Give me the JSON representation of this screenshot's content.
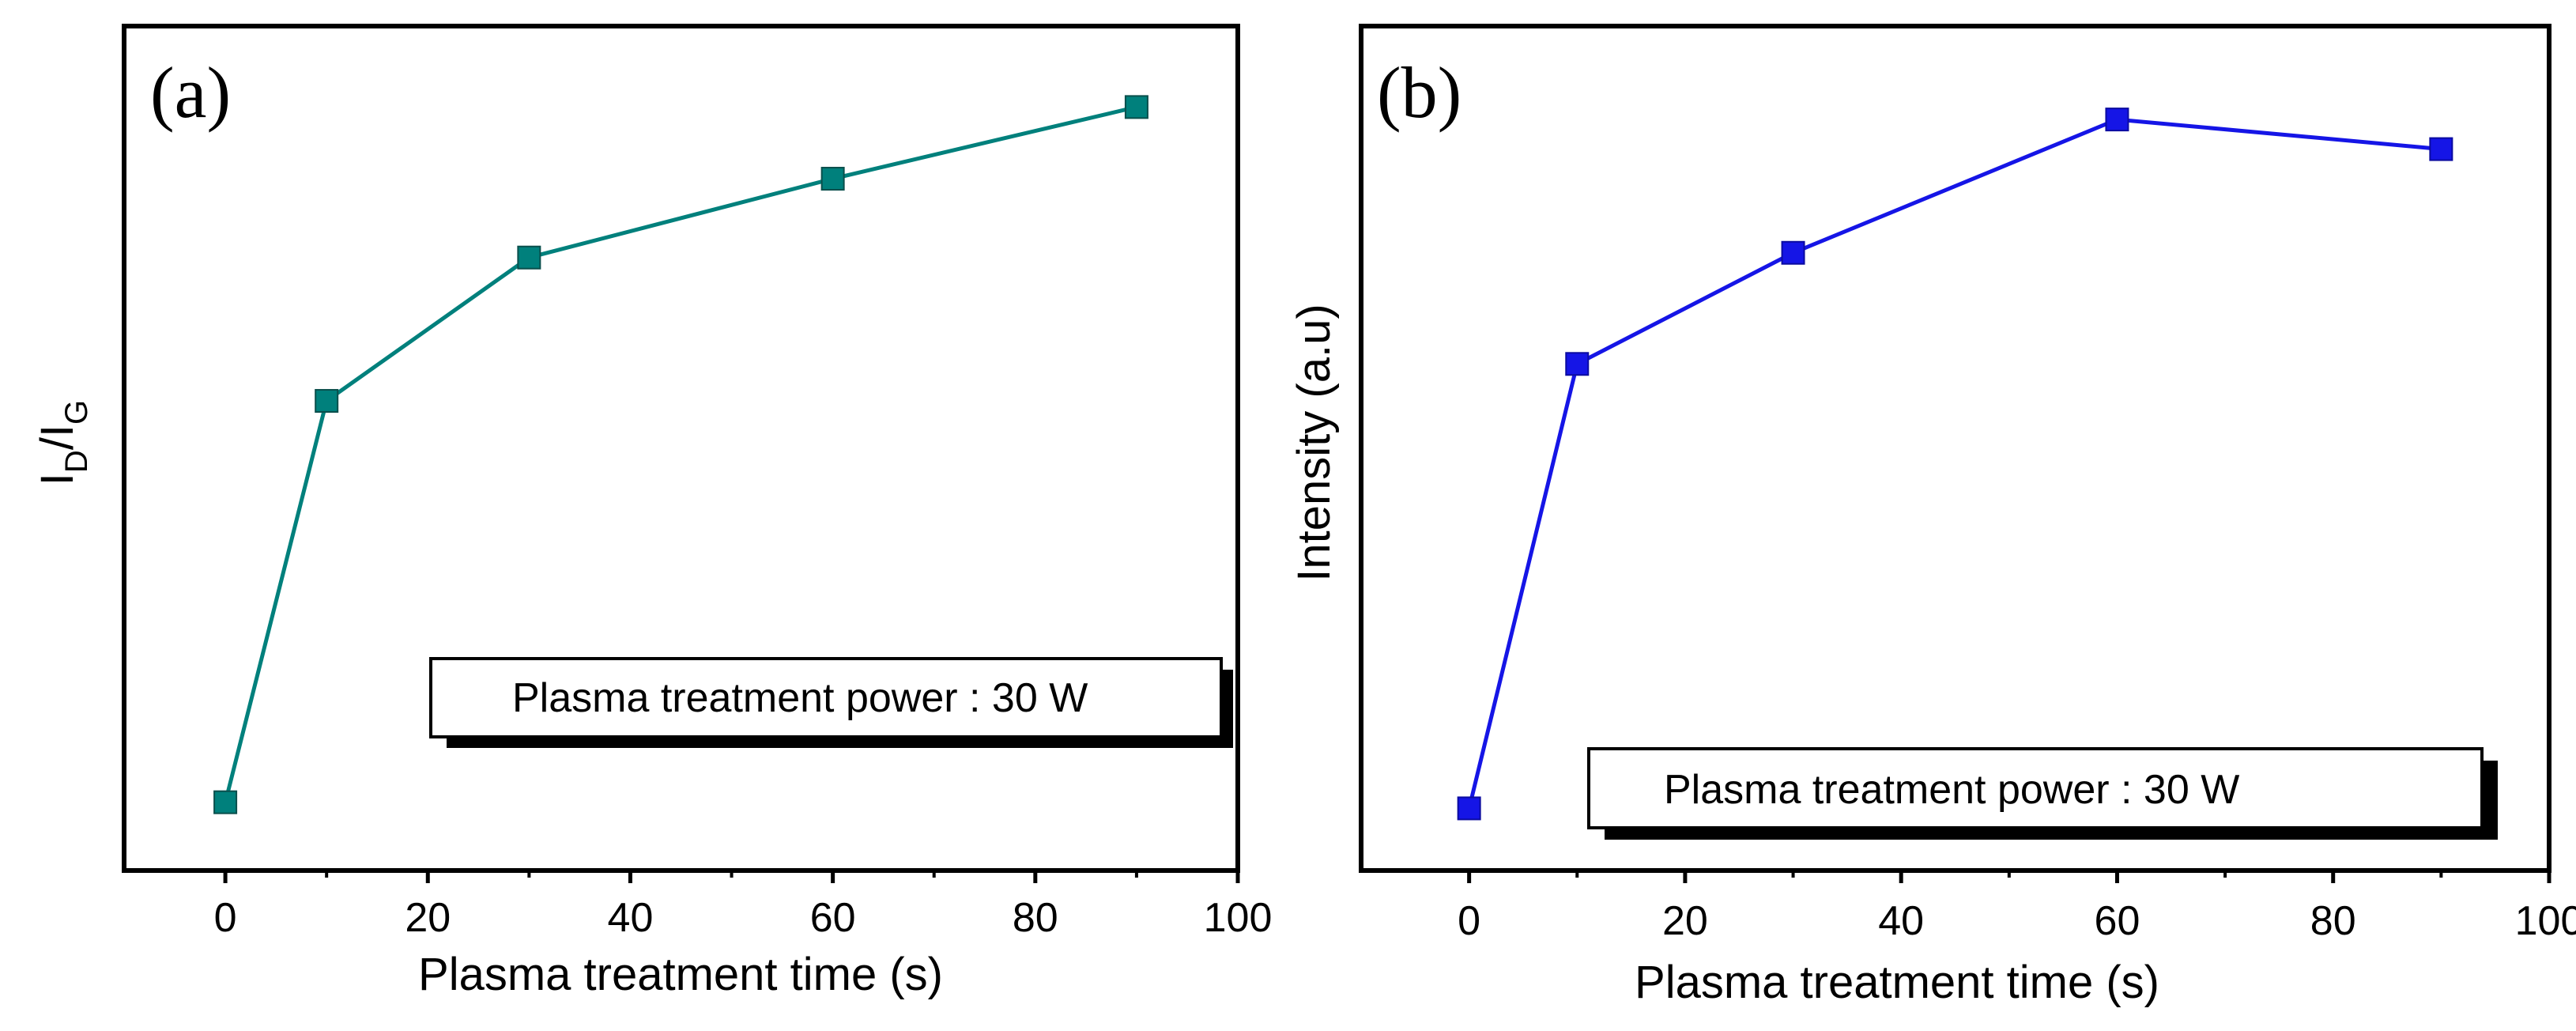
{
  "chart_data": [
    {
      "type": "line",
      "panel_label": "(a)",
      "xlabel": "Plasma treatment time (s)",
      "ylabel": "I",
      "ylabel_sub1": "D",
      "ylabel_mid": "/I",
      "ylabel_sub2": "G",
      "xlim": [
        -10,
        100
      ],
      "xticks": [
        0,
        20,
        40,
        60,
        80,
        100
      ],
      "ylim": [
        0,
        1
      ],
      "yticks_labeled": false,
      "grid": false,
      "annotation": "Plasma treatment power : 30 W",
      "color": "#00807c",
      "series": [
        {
          "x": [
            0,
            10,
            30,
            60,
            90
          ],
          "y": [
            0.05,
            0.61,
            0.81,
            0.92,
            1.02
          ]
        }
      ]
    },
    {
      "type": "line",
      "panel_label": "(b)",
      "xlabel": "Plasma treatment time (s)",
      "ylabel": "Intensity (a.u)",
      "xlim": [
        -10,
        100
      ],
      "xticks": [
        0,
        20,
        40,
        60,
        80,
        100
      ],
      "ylim": [
        0,
        1
      ],
      "yticks_labeled": false,
      "grid": false,
      "annotation": "Plasma treatment power : 30 W",
      "color": "#1515e6",
      "series": [
        {
          "x": [
            0,
            10,
            30,
            60,
            90
          ],
          "y": [
            0.07,
            0.67,
            0.82,
            1.0,
            0.96
          ]
        }
      ]
    }
  ]
}
